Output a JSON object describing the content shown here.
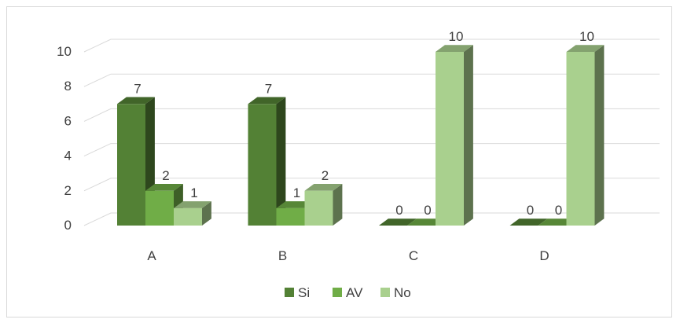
{
  "chart_data": {
    "type": "bar",
    "categories": [
      "A",
      "B",
      "C",
      "D"
    ],
    "series": [
      {
        "name": "Si",
        "values": [
          7,
          7,
          0,
          0
        ],
        "color": "#538135"
      },
      {
        "name": "AV",
        "values": [
          2,
          1,
          0,
          0
        ],
        "color": "#70ad47"
      },
      {
        "name": "No",
        "values": [
          1,
          2,
          10,
          10
        ],
        "color": "#a9d08e"
      }
    ],
    "y_ticks": [
      "0",
      "2",
      "4",
      "6",
      "8",
      "10"
    ],
    "ylim": [
      0,
      10
    ],
    "grid": true,
    "legend_position": "bottom",
    "style": "3d-clustered-column"
  }
}
